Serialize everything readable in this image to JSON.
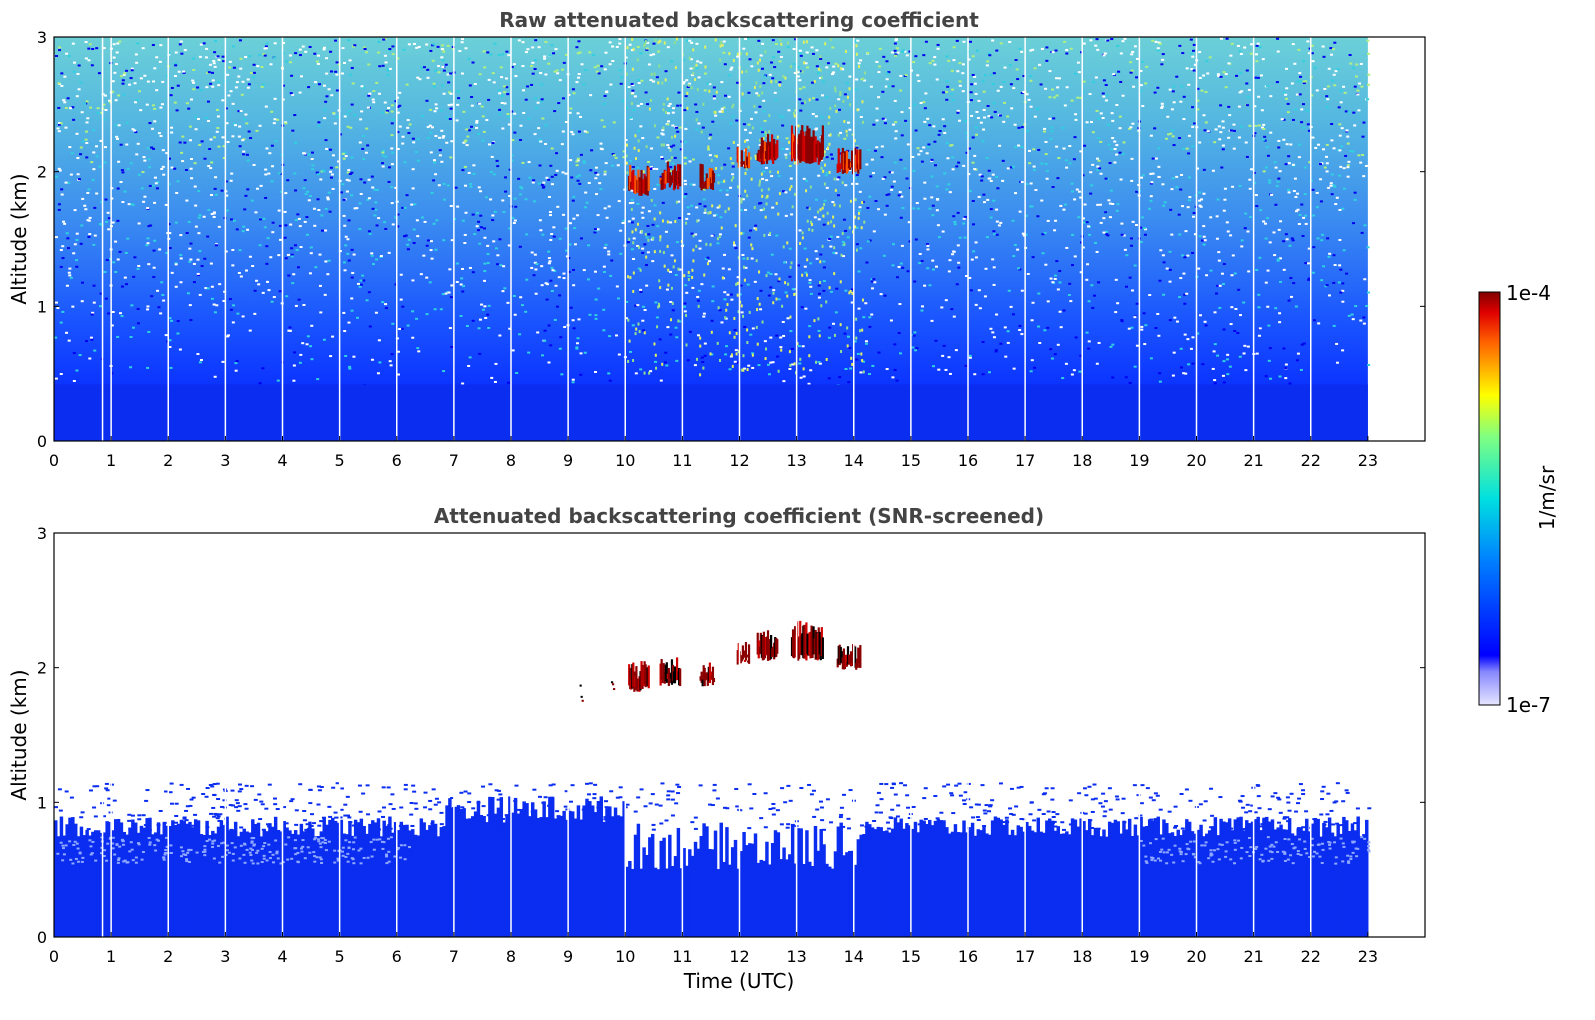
{
  "chart_data": [
    {
      "type": "heatmap",
      "title": "Raw attenuated backscattering coefficient",
      "xlabel": "",
      "ylabel": "Altitude (km)",
      "xlim": [
        0,
        24
      ],
      "ylim": [
        0,
        3
      ],
      "x_ticks": [
        "0",
        "1",
        "2",
        "3",
        "4",
        "5",
        "6",
        "7",
        "8",
        "9",
        "10",
        "11",
        "12",
        "13",
        "14",
        "15",
        "16",
        "17",
        "18",
        "19",
        "20",
        "21",
        "22",
        "23"
      ],
      "y_ticks": [
        "0",
        "1",
        "2",
        "3"
      ],
      "data_time_range_utc": [
        0,
        23
      ],
      "color_scale": "log",
      "value_range": [
        1e-07,
        0.0001
      ],
      "features": [
        {
          "kind": "dense boundary layer signal",
          "altitude_km": [
            0,
            0.45
          ],
          "level": "low (~1e-6)"
        },
        {
          "kind": "noisy background increasing with altitude",
          "altitude_km": [
            0.45,
            3.0
          ]
        },
        {
          "kind": "cloud layer",
          "time_utc": [
            10.0,
            14.1
          ],
          "altitude_km": [
            1.85,
            2.35
          ],
          "level": "high (~1e-4)"
        },
        {
          "kind": "data gaps (vertical white lines)",
          "time_utc": [
            0.85,
            1.0,
            2.0,
            3.0,
            4.0,
            5.0,
            6.0,
            7.0,
            8.0,
            9.0,
            10.0,
            11.0,
            12.0,
            13.0,
            14.0,
            15.0,
            16.0,
            17.0,
            18.0,
            19.0,
            20.0,
            21.0,
            22.0
          ]
        }
      ]
    },
    {
      "type": "heatmap",
      "title": "Attenuated backscattering coefficient (SNR-screened)",
      "xlabel": "Time (UTC)",
      "ylabel": "Altitude (km)",
      "xlim": [
        0,
        24
      ],
      "ylim": [
        0,
        3
      ],
      "x_ticks": [
        "0",
        "1",
        "2",
        "3",
        "4",
        "5",
        "6",
        "7",
        "8",
        "9",
        "10",
        "11",
        "12",
        "13",
        "14",
        "15",
        "16",
        "17",
        "18",
        "19",
        "20",
        "21",
        "22",
        "23"
      ],
      "y_ticks": [
        "0",
        "1",
        "2",
        "3"
      ],
      "data_time_range_utc": [
        0,
        23
      ],
      "color_scale": "log",
      "value_range": [
        1e-07,
        0.0001
      ],
      "features": [
        {
          "kind": "boundary layer (screened)",
          "altitude_km": [
            0,
            0.85
          ],
          "note": "top dips to ~0.5 km between 10 and 14 UTC"
        },
        {
          "kind": "cloud layer",
          "time_utc": [
            9.2,
            14.1
          ],
          "altitude_km": [
            1.85,
            2.35
          ],
          "level": "high (~1e-4)"
        }
      ]
    }
  ],
  "colorbar": {
    "label": "1/m/sr",
    "max_label": "1e-4",
    "min_label": "1e-7",
    "colormap": "jet"
  },
  "colors": {
    "boundary_layer": "#0a2df0",
    "cloud": "#8b0000",
    "frame": "#000000",
    "title": "#444444"
  }
}
